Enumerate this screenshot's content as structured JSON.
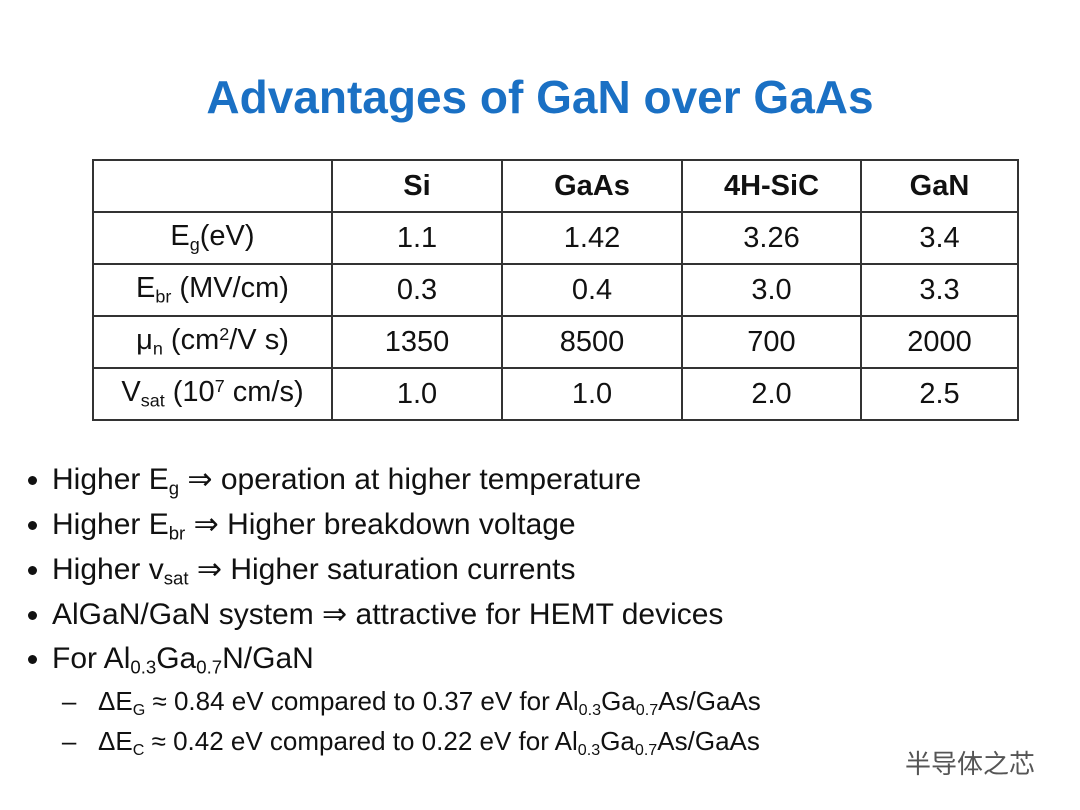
{
  "title": "Advantages of GaN over GaAs",
  "table": {
    "columns": [
      "Si",
      "GaAs",
      "4H-SiC",
      "GaN"
    ],
    "rows": [
      {
        "label": [
          "E",
          "g",
          "(eV)"
        ],
        "values": [
          "1.1",
          "1.42",
          "3.26",
          "3.4"
        ]
      },
      {
        "label": [
          "E",
          "br",
          " (MV/cm)"
        ],
        "values": [
          "0.3",
          "0.4",
          "3.0",
          "3.3"
        ]
      },
      {
        "label": [
          "μ",
          "n",
          " (cm",
          "2",
          "/V s)"
        ],
        "values": [
          "1350",
          "8500",
          "700",
          "2000"
        ]
      },
      {
        "label": [
          "V",
          "sat",
          " (10",
          "7",
          " cm/s)"
        ],
        "values": [
          "1.0",
          "1.0",
          "2.0",
          "2.5"
        ]
      }
    ]
  },
  "bullets": [
    [
      "Higher E",
      "g",
      " ⇒ operation at higher temperature"
    ],
    [
      "Higher E",
      "br",
      " ⇒ Higher breakdown voltage"
    ],
    [
      "Higher v",
      "sat",
      " ⇒ Higher saturation currents"
    ],
    [
      "AlGaN/GaN system ⇒ attractive for HEMT devices"
    ],
    [
      "For Al",
      "0.3",
      "Ga",
      "0.7",
      "N/GaN"
    ]
  ],
  "sub_bullets": [
    [
      "ΔE",
      "G",
      " ≈ 0.84 eV compared to 0.37 eV for Al",
      "0.3",
      "Ga",
      "0.7",
      "As/GaAs"
    ],
    [
      "ΔE",
      "C",
      " ≈ 0.42 eV compared to 0.22 eV for Al",
      "0.3",
      "Ga",
      "0.7",
      "As/GaAs"
    ]
  ],
  "watermark": "半导体之芯"
}
